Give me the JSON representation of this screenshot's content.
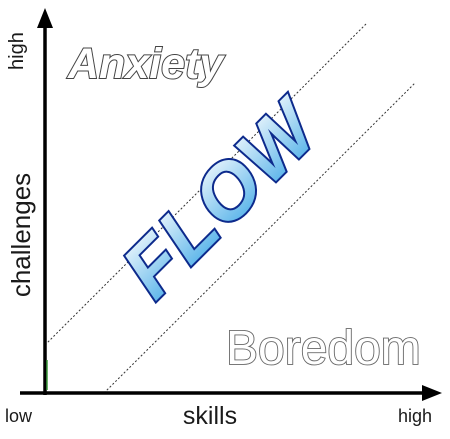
{
  "axes": {
    "y_top_label": "high",
    "y_label": "challenges",
    "origin_label": "low",
    "x_label": "skills",
    "x_right_label": "high"
  },
  "regions": {
    "anxiety": "Anxiety",
    "flow": "FLOW",
    "boredom": "Boredom"
  },
  "colors": {
    "axis": "#000000",
    "flow_fill_top": "#ffffff",
    "flow_fill_bottom": "#3fa8e6",
    "flow_stroke": "#0d2a8c",
    "outline_text_fill": "#ffffff",
    "outline_text_stroke": "#555555",
    "channel_line": "#333333"
  }
}
